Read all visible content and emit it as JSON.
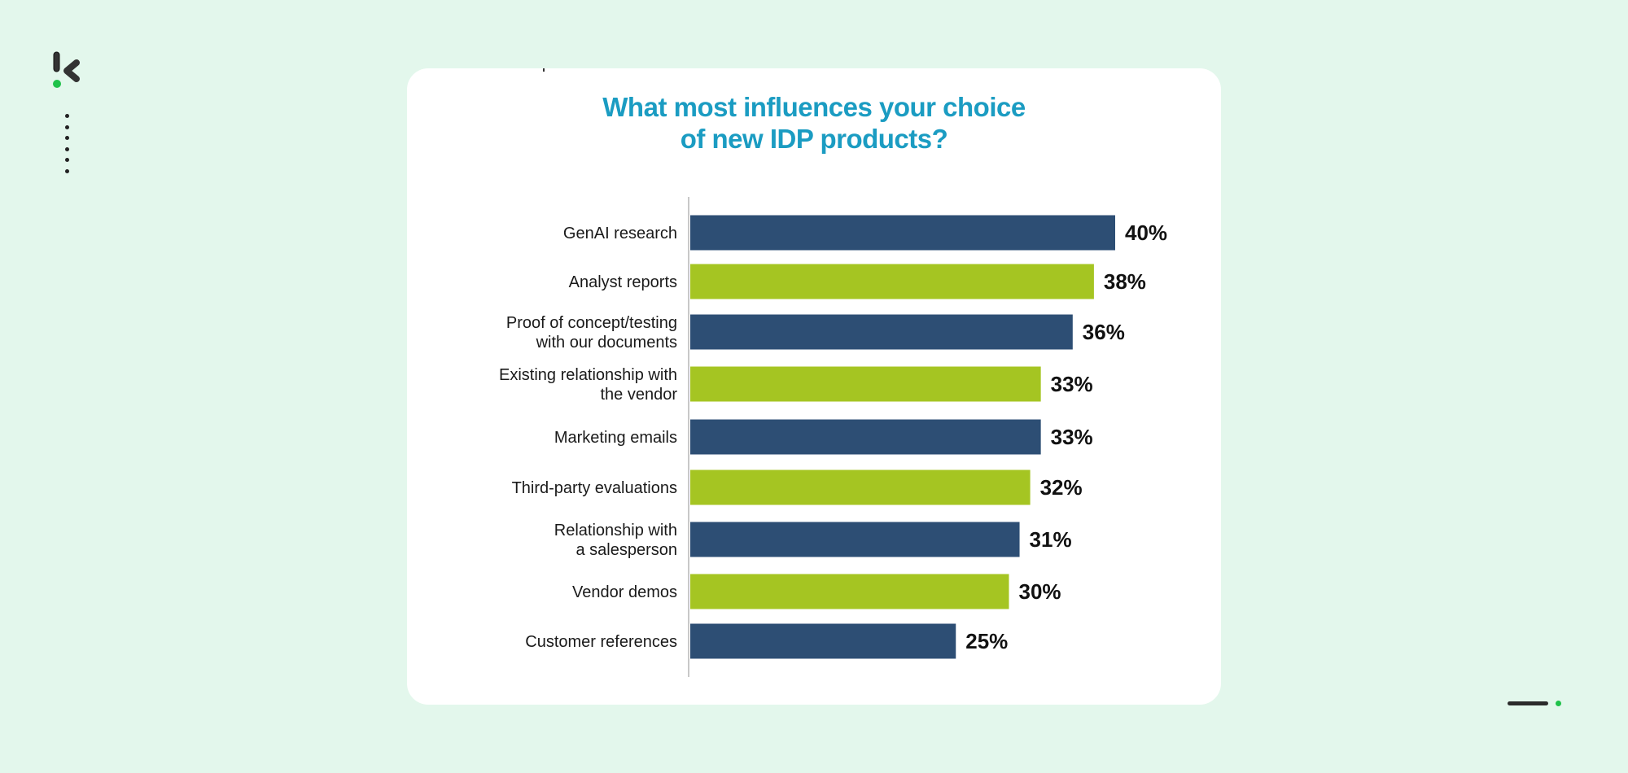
{
  "colors": {
    "background": "#e3f7ec",
    "title": "#1b9cc2",
    "navy": "#2d4e74",
    "green": "#a5c522",
    "brand_green": "#1fc24a"
  },
  "icons": {
    "logo": "brand-k-logo",
    "dots": "vertical-dots-decoration",
    "pager": "slide-indicator"
  },
  "chart_data": {
    "type": "bar",
    "orientation": "horizontal",
    "title": "What most influences your choice of new IDP products?",
    "title_lines": [
      "What most influences your choice",
      "of new IDP products?"
    ],
    "categories": [
      [
        "GenAI research"
      ],
      [
        "Analyst reports"
      ],
      [
        "Proof of concept/testing",
        "with our documents"
      ],
      [
        "Existing relationship with",
        "the vendor"
      ],
      [
        "Marketing emails"
      ],
      [
        "Third-party evaluations"
      ],
      [
        "Relationship with",
        "a salesperson"
      ],
      [
        "Vendor demos"
      ],
      [
        "Customer references"
      ]
    ],
    "values": [
      40,
      38,
      36,
      33,
      33,
      32,
      31,
      30,
      25
    ],
    "value_labels": [
      "40%",
      "38%",
      "36%",
      "33%",
      "33%",
      "32%",
      "31%",
      "30%",
      "25%"
    ],
    "bar_colors": [
      "#2d4e74",
      "#a5c522",
      "#2d4e74",
      "#a5c522",
      "#2d4e74",
      "#a5c522",
      "#2d4e74",
      "#a5c522",
      "#2d4e74"
    ],
    "xlim": [
      0,
      45
    ],
    "grid": false,
    "legend": "none"
  }
}
